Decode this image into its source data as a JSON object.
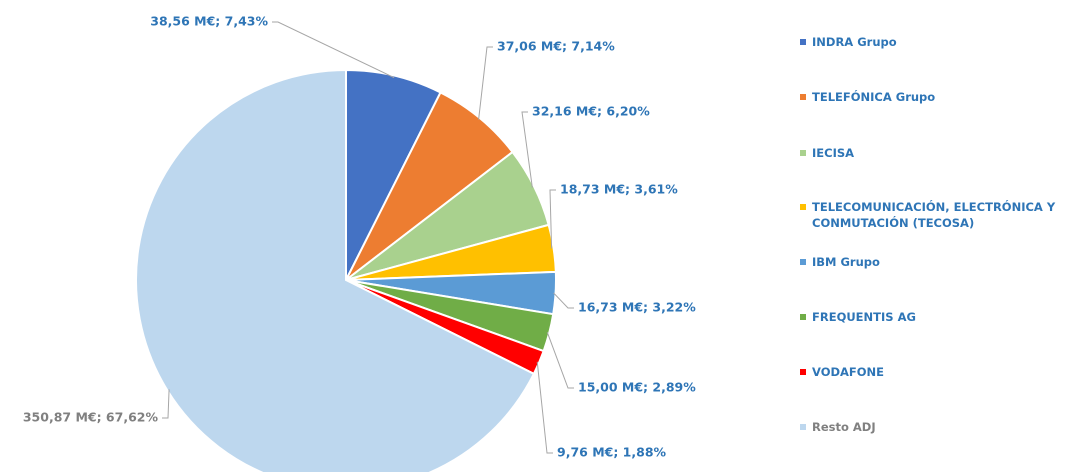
{
  "chart_data": {
    "type": "pie",
    "categories": [
      "INDRA Grupo",
      "TELEFÓNICA Grupo",
      "IECISA",
      "TELECOMUNICACIÓN, ELECTRÓNICA Y CONMUTACIÓN (TECOSA)",
      "IBM Grupo",
      "FREQUENTIS AG",
      "VODAFONE",
      "Resto ADJ"
    ],
    "values": [
      7.43,
      7.14,
      6.2,
      3.61,
      3.22,
      2.89,
      1.88,
      67.62
    ],
    "value_labels": [
      "38,56 M€; 7,43%",
      "37,06 M€; 7,14%",
      "32,16 M€; 6,20%",
      "18,73 M€; 3,61%",
      "16,73 M€; 3,22%",
      "15,00 M€; 2,89%",
      "9,76 M€; 1,88%",
      "350,87 M€; 67,62%"
    ],
    "colors": [
      "#4472c4",
      "#ed7d31",
      "#a9d18e",
      "#ffc000",
      "#5b9bd5",
      "#70ad47",
      "#ff0000",
      "#bdd7ee"
    ],
    "legend": "right"
  }
}
